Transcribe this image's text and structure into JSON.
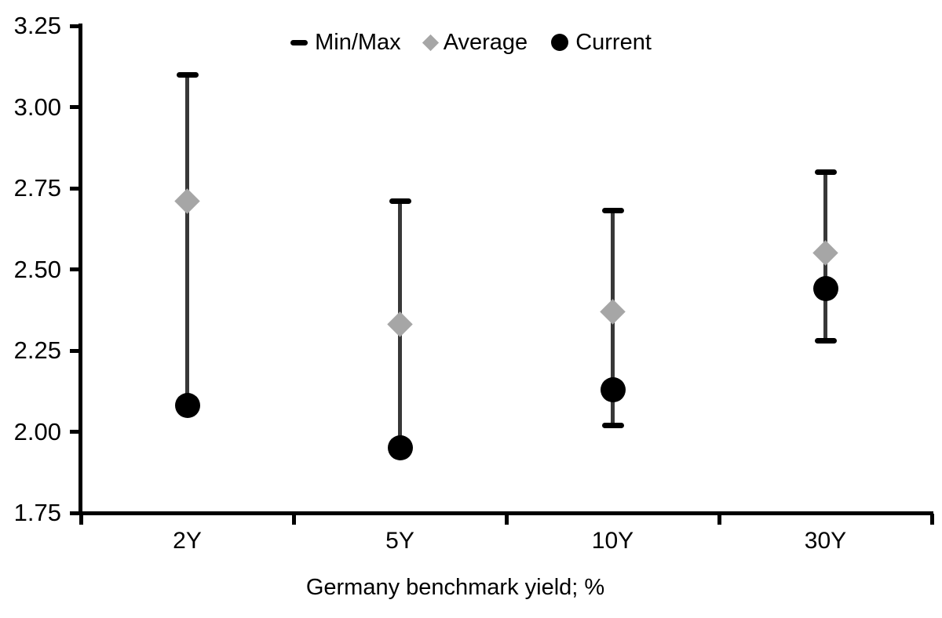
{
  "chart_data": {
    "type": "scatter",
    "title": "",
    "xlabel": "Germany benchmark yield; %",
    "ylabel": "",
    "categories": [
      "2Y",
      "5Y",
      "10Y",
      "30Y"
    ],
    "series": [
      {
        "name": "Min/Max",
        "kind": "range",
        "marker": "dash",
        "min": [
          2.08,
          1.95,
          2.02,
          2.28
        ],
        "max": [
          3.1,
          2.71,
          2.68,
          2.8
        ]
      },
      {
        "name": "Average",
        "kind": "point",
        "marker": "diamond",
        "values": [
          2.71,
          2.33,
          2.37,
          2.55
        ]
      },
      {
        "name": "Current",
        "kind": "point",
        "marker": "circle",
        "values": [
          2.08,
          1.95,
          2.13,
          2.44
        ]
      }
    ],
    "ylim": [
      1.75,
      3.25
    ],
    "ytick_step": 0.25,
    "yticks": [
      "3.25",
      "3.00",
      "2.75",
      "2.50",
      "2.25",
      "2.00",
      "1.75"
    ],
    "grid": false,
    "legend_position": "top-center",
    "colors": {
      "background": "#ffffff",
      "axis": "#000000",
      "range_line": "#383838",
      "range_cap": "#000000",
      "average": "#a6a6a6",
      "current": "#000000"
    }
  }
}
